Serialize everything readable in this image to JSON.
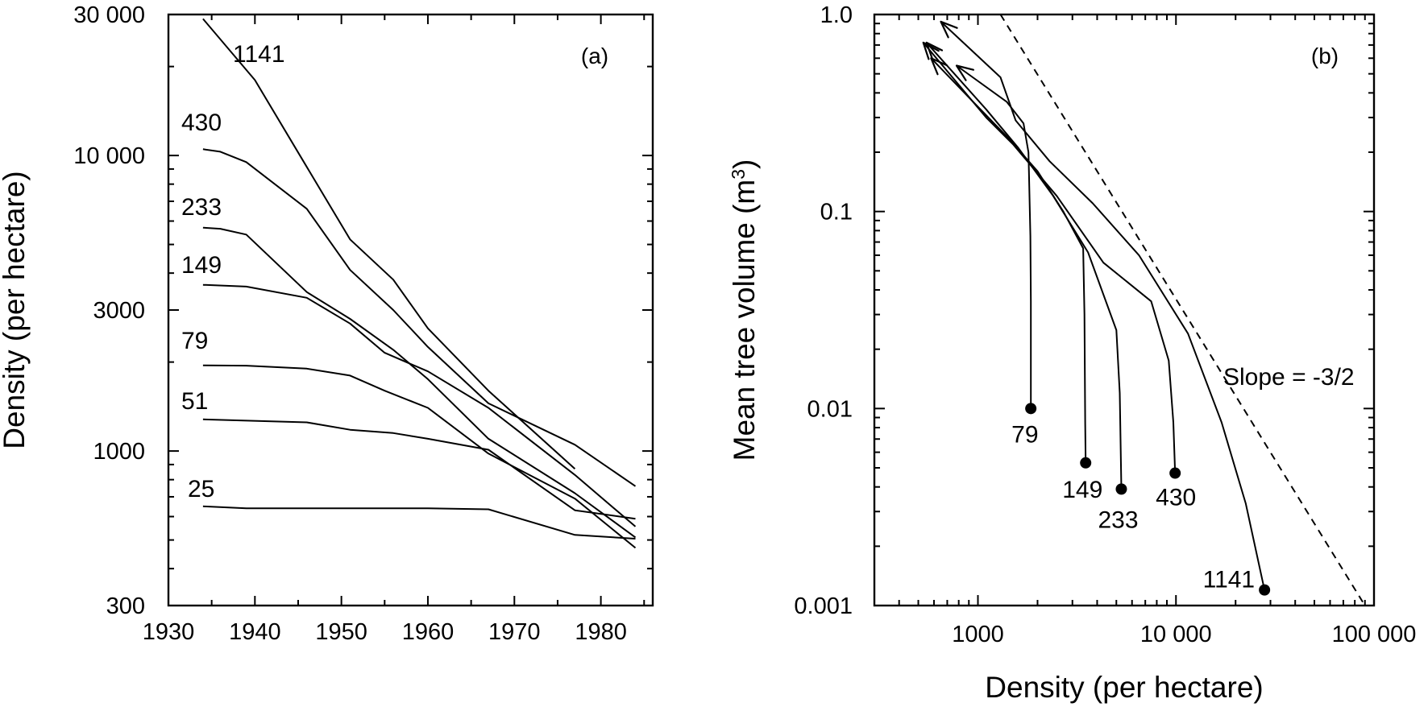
{
  "chart_data": [
    {
      "type": "line",
      "panel_label": "(a)",
      "title": "",
      "xlabel": "",
      "ylabel": "Density (per hectare)",
      "xlim": [
        1930,
        1986
      ],
      "ylim": [
        300,
        30000
      ],
      "y_scale": "log",
      "x_ticks": [
        1930,
        1940,
        1950,
        1960,
        1970,
        1980
      ],
      "y_ticks": [
        300,
        1000,
        3000,
        10000,
        30000
      ],
      "y_tick_labels": [
        "300",
        "1000",
        "3000",
        "10 000",
        "30 000"
      ],
      "grid": false,
      "series": [
        {
          "name": "1141",
          "x": [
            1934,
            1940,
            1951,
            1956,
            1960,
            1967,
            1977
          ],
          "y": [
            29000,
            18000,
            5200,
            3800,
            2600,
            1600,
            870
          ]
        },
        {
          "name": "430",
          "x": [
            1934,
            1936,
            1939,
            1946,
            1951,
            1956,
            1960,
            1967,
            1977,
            1984
          ],
          "y": [
            10500,
            10300,
            9500,
            6600,
            4100,
            3000,
            2250,
            1450,
            1050,
            760
          ]
        },
        {
          "name": "233",
          "x": [
            1934,
            1936,
            1939,
            1946,
            1951,
            1956,
            1960,
            1967,
            1977,
            1984
          ],
          "y": [
            5700,
            5650,
            5400,
            3450,
            2800,
            2200,
            1750,
            1100,
            720,
            510
          ]
        },
        {
          "name": "149",
          "x": [
            1934,
            1939,
            1946,
            1951,
            1955,
            1960,
            1967,
            1977,
            1984
          ],
          "y": [
            3650,
            3600,
            3300,
            2700,
            2150,
            1860,
            1400,
            830,
            555
          ]
        },
        {
          "name": "79",
          "x": [
            1934,
            1939,
            1946,
            1951,
            1955,
            1960,
            1967,
            1977,
            1984
          ],
          "y": [
            1950,
            1945,
            1900,
            1800,
            1600,
            1400,
            980,
            690,
            470
          ]
        },
        {
          "name": "51",
          "x": [
            1934,
            1946,
            1951,
            1956,
            1960,
            1967,
            1977,
            1984
          ],
          "y": [
            1280,
            1250,
            1180,
            1150,
            1100,
            1010,
            630,
            590
          ]
        },
        {
          "name": "25",
          "x": [
            1934,
            1939,
            1951,
            1956,
            1960,
            1967,
            1977,
            1984
          ],
          "y": [
            650,
            640,
            640,
            640,
            640,
            635,
            520,
            505
          ]
        }
      ]
    },
    {
      "type": "line",
      "panel_label": "(b)",
      "title": "",
      "xlabel": "Density (per hectare)",
      "ylabel": "Mean tree volume (m³)",
      "xlim": [
        300,
        100000
      ],
      "ylim": [
        0.001,
        1.0
      ],
      "x_scale": "log",
      "y_scale": "log",
      "x_ticks": [
        1000,
        10000,
        100000
      ],
      "x_tick_labels": [
        "1000",
        "10 000",
        "100 000"
      ],
      "y_ticks": [
        0.001,
        0.01,
        0.1,
        1.0
      ],
      "y_tick_labels": [
        "0.001",
        "0.01",
        "0.1",
        "1.0"
      ],
      "grid": false,
      "annotation": "Slope = -3/2",
      "reference_line": {
        "label": "Slope = -3/2",
        "x": [
          1300,
          90000
        ],
        "y": [
          1.0,
          0.001
        ]
      },
      "series": [
        {
          "name": "79",
          "x": [
            1850,
            1850,
            1840,
            1810,
            1800,
            1700,
            1400,
            780
          ],
          "y": [
            0.01,
            0.035,
            0.075,
            0.16,
            0.2,
            0.28,
            0.36,
            0.55
          ]
        },
        {
          "name": "149",
          "x": [
            3500,
            3480,
            3450,
            3400,
            2700,
            2000,
            1400,
            1000,
            580
          ],
          "y": [
            0.0053,
            0.0085,
            0.03,
            0.065,
            0.1,
            0.16,
            0.24,
            0.34,
            0.6
          ]
        },
        {
          "name": "233",
          "x": [
            5300,
            5200,
            5000,
            3600,
            2400,
            1600,
            1100,
            550
          ],
          "y": [
            0.0039,
            0.012,
            0.025,
            0.062,
            0.12,
            0.21,
            0.33,
            0.72
          ]
        },
        {
          "name": "430",
          "x": [
            9900,
            9700,
            9200,
            7500,
            4300,
            2500,
            1500,
            1100,
            530
          ],
          "y": [
            0.0047,
            0.0085,
            0.0175,
            0.035,
            0.055,
            0.12,
            0.22,
            0.3,
            0.72
          ]
        },
        {
          "name": "1141",
          "x": [
            28000,
            22500,
            17000,
            11500,
            6500,
            3800,
            2300,
            1550,
            1300,
            650
          ],
          "y": [
            0.0012,
            0.0033,
            0.0085,
            0.024,
            0.06,
            0.11,
            0.18,
            0.29,
            0.48,
            0.92
          ]
        }
      ]
    }
  ]
}
